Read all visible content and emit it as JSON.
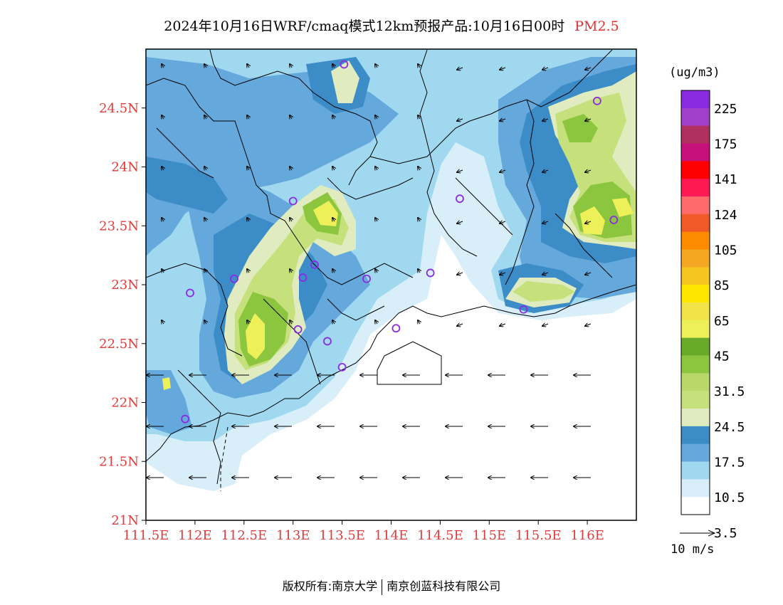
{
  "title": {
    "text": "2024年10月16日WRF/cmaq模式12km预报产品:10月16日00时",
    "variable": "PM2.5"
  },
  "axes": {
    "lat_labels": [
      "24.5N",
      "24N",
      "23.5N",
      "23N",
      "22.5N",
      "22N",
      "21.5N",
      "21N"
    ],
    "lat_values": [
      24.5,
      24,
      23.5,
      23,
      22.5,
      22,
      21.5,
      21
    ],
    "lon_labels": [
      "111.5E",
      "112E",
      "112.5E",
      "113E",
      "113.5E",
      "114E",
      "114.5E",
      "115E",
      "115.5E",
      "116E"
    ],
    "lon_values": [
      111.5,
      112,
      112.5,
      113,
      113.5,
      114,
      114.5,
      115,
      115.5,
      116
    ],
    "lon_range": [
      111.5,
      116.5
    ],
    "lat_range": [
      21.0,
      25.0
    ],
    "label_color": "#e03a3a"
  },
  "colorbar": {
    "unit": "(ug/m3)",
    "labels": [
      "225",
      "175",
      "141",
      "124",
      "105",
      "85",
      "65",
      "45",
      "31.5",
      "24.5",
      "17.5",
      "10.5",
      "3.5"
    ],
    "colors_top_to_bottom": [
      "#8a2be2",
      "#a040c8",
      "#b03060",
      "#c8107a",
      "#ff0000",
      "#ff1a55",
      "#ff6a6a",
      "#f05a28",
      "#ff8c00",
      "#f5a623",
      "#f7c520",
      "#ffe600",
      "#f2e34a",
      "#eef05a",
      "#6aaa2a",
      "#8cc63f",
      "#b8d96a",
      "#c6e07c",
      "#e0ecc0",
      "#3c8cc8",
      "#64a8dc",
      "#a0d8f0",
      "#d8eef8",
      "#ffffff"
    ]
  },
  "wind_reference": {
    "label": "10 m/s"
  },
  "footer": {
    "left": "版权所有:南京大学",
    "right": "南京创蓝科技有限公司"
  },
  "colors": {
    "very_light_blue": "#d8eef8",
    "light_blue": "#a0d8f0",
    "mid_blue": "#64a8dc",
    "dark_blue": "#3c8cc8",
    "pale_green": "#e0ecc0",
    "light_green": "#c6e07c",
    "green": "#8cc63f",
    "yellow": "#eef05a",
    "marker": "#8a2be2"
  },
  "stations": [
    {
      "lon": 113.52,
      "lat": 24.87
    },
    {
      "lon": 116.1,
      "lat": 24.56
    },
    {
      "lon": 113.0,
      "lat": 23.71
    },
    {
      "lon": 114.7,
      "lat": 23.73
    },
    {
      "lon": 116.27,
      "lat": 23.55
    },
    {
      "lon": 112.4,
      "lat": 23.05
    },
    {
      "lon": 113.1,
      "lat": 23.06
    },
    {
      "lon": 113.22,
      "lat": 23.17
    },
    {
      "lon": 113.75,
      "lat": 23.05
    },
    {
      "lon": 114.4,
      "lat": 23.1
    },
    {
      "lon": 111.95,
      "lat": 22.93
    },
    {
      "lon": 115.35,
      "lat": 22.79
    },
    {
      "lon": 113.05,
      "lat": 22.62
    },
    {
      "lon": 114.05,
      "lat": 22.63
    },
    {
      "lon": 113.35,
      "lat": 22.52
    },
    {
      "lon": 113.5,
      "lat": 22.3
    },
    {
      "lon": 111.9,
      "lat": 21.86
    }
  ]
}
